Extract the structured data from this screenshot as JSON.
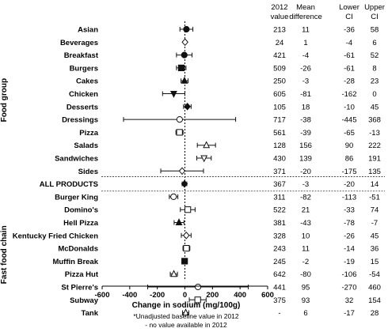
{
  "chart_data": {
    "type": "forest",
    "xlabel": "Change in sodium (mg/100g)",
    "xlim": [
      -600,
      600
    ],
    "xticks": [
      "-600",
      "-400",
      "-200",
      "0",
      "200",
      "400",
      "600"
    ],
    "columns": [
      "2012 value",
      "Mean difference",
      "Lower CI",
      "Upper CI"
    ],
    "header": {
      "col1": [
        "2012",
        "value"
      ],
      "col2": [
        "Mean",
        "difference"
      ],
      "col3": [
        "Lower",
        "CI"
      ],
      "col4": [
        "Upper",
        "CI"
      ]
    },
    "groups": [
      {
        "name": "Food group",
        "rows": [
          0,
          11
        ]
      },
      {
        "name": "Fast food chain",
        "rows": [
          13,
          22
        ]
      }
    ],
    "rows": [
      {
        "label": "Asian",
        "v2012": "213",
        "mean": 11,
        "lower": -36,
        "upper": 58,
        "marker": "circle"
      },
      {
        "label": "Beverages",
        "v2012": "24",
        "mean": 1,
        "lower": -4,
        "upper": 6,
        "marker": "diamond-open"
      },
      {
        "label": "Breakfast",
        "v2012": "421",
        "mean": -4,
        "lower": -61,
        "upper": 52,
        "marker": "circle"
      },
      {
        "label": "Burgers",
        "v2012": "509",
        "mean": -26,
        "lower": -61,
        "upper": 8,
        "marker": "square"
      },
      {
        "label": "Cakes",
        "v2012": "250",
        "mean": -3,
        "lower": -28,
        "upper": 23,
        "marker": "triangle"
      },
      {
        "label": "Chicken",
        "v2012": "605",
        "mean": -81,
        "lower": -162,
        "upper": 0,
        "marker": "triangle-down"
      },
      {
        "label": "Desserts",
        "v2012": "105",
        "mean": 18,
        "lower": -10,
        "upper": 45,
        "marker": "diamond"
      },
      {
        "label": "Dressings",
        "v2012": "717",
        "mean": -38,
        "lower": -445,
        "upper": 368,
        "marker": "circle-open"
      },
      {
        "label": "Pizza",
        "v2012": "561",
        "mean": -39,
        "lower": -65,
        "upper": -13,
        "marker": "square-open"
      },
      {
        "label": "Salads",
        "v2012": "128",
        "mean": 156,
        "lower": 90,
        "upper": 222,
        "marker": "triangle-open"
      },
      {
        "label": "Sandwiches",
        "v2012": "430",
        "mean": 139,
        "lower": 86,
        "upper": 191,
        "marker": "triangle-down-open"
      },
      {
        "label": "Sides",
        "v2012": "371",
        "mean": -20,
        "lower": -175,
        "upper": 135,
        "marker": "diamond-open"
      },
      {
        "label": "ALL PRODUCTS",
        "v2012": "367",
        "mean": -3,
        "lower": -20,
        "upper": 14,
        "marker": "diamond"
      },
      {
        "label": "Burger King",
        "v2012": "311",
        "mean": -82,
        "lower": -113,
        "upper": -51,
        "marker": "circle-open"
      },
      {
        "label": "Domino's",
        "v2012": "522",
        "mean": 21,
        "lower": -33,
        "upper": 74,
        "marker": "square-open"
      },
      {
        "label": "Hell Pizza",
        "v2012": "381",
        "mean": -43,
        "lower": -78,
        "upper": -7,
        "marker": "triangle"
      },
      {
        "label": "Kentucky Fried Chicken",
        "v2012": "328",
        "mean": 10,
        "lower": -26,
        "upper": 45,
        "marker": "diamond-open"
      },
      {
        "label": "McDonalds",
        "v2012": "243",
        "mean": 11,
        "lower": -14,
        "upper": 36,
        "marker": "square-open"
      },
      {
        "label": "Muffin Break",
        "v2012": "245",
        "mean": -2,
        "lower": -19,
        "upper": 15,
        "marker": "square"
      },
      {
        "label": "Pizza Hut",
        "v2012": "642",
        "mean": -80,
        "lower": -106,
        "upper": -54,
        "marker": "triangle-open"
      },
      {
        "label": "St Pierre's",
        "v2012": "441",
        "mean": 95,
        "lower": -270,
        "upper": 460,
        "marker": "circle-open"
      },
      {
        "label": "Subway",
        "v2012": "375",
        "mean": 93,
        "lower": 32,
        "upper": 154,
        "marker": "square-open"
      },
      {
        "label": "Tank",
        "v2012": "-",
        "mean": 6,
        "lower": -17,
        "upper": 28,
        "marker": "triangle-open"
      }
    ],
    "footnotes": [
      "*Unadjusted baseline value in 2012",
      "- no value available in 2012"
    ]
  }
}
